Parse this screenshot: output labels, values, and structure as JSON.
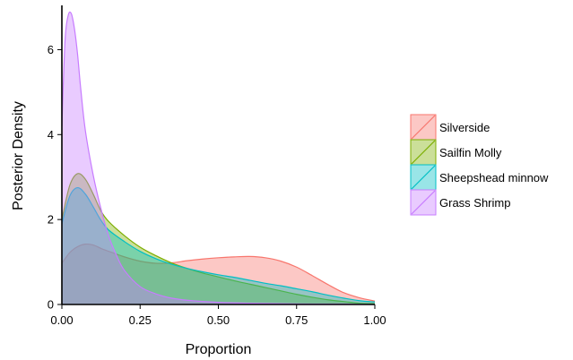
{
  "chart_data": {
    "type": "area",
    "title": "",
    "xlabel": "Proportion",
    "ylabel": "Posterior Density",
    "xlim": [
      0,
      1
    ],
    "ylim": [
      0,
      7
    ],
    "x_ticks": [
      "0.00",
      "0.25",
      "0.50",
      "0.75",
      "1.00"
    ],
    "x_tick_values": [
      0,
      0.25,
      0.5,
      0.75,
      1
    ],
    "y_ticks": [
      "0",
      "2",
      "4",
      "6"
    ],
    "y_tick_values": [
      0,
      2,
      4,
      6
    ],
    "grid": false,
    "legend_position": "right",
    "series": [
      {
        "name": "Silverside",
        "color": "#F8766D",
        "x": [
          0,
          0.025,
          0.05,
          0.075,
          0.1,
          0.125,
          0.15,
          0.2,
          0.25,
          0.3,
          0.35,
          0.4,
          0.45,
          0.5,
          0.55,
          0.6,
          0.65,
          0.7,
          0.75,
          0.8,
          0.85,
          0.9,
          0.95,
          1.0
        ],
        "y": [
          0.97,
          1.22,
          1.36,
          1.42,
          1.4,
          1.32,
          1.25,
          1.12,
          1.02,
          0.97,
          0.98,
          1.03,
          1.07,
          1.1,
          1.12,
          1.13,
          1.1,
          1.02,
          0.88,
          0.68,
          0.47,
          0.28,
          0.16,
          0.08
        ]
      },
      {
        "name": "Sailfin Molly",
        "color": "#7CAE00",
        "x": [
          0,
          0.025,
          0.05,
          0.075,
          0.1,
          0.125,
          0.15,
          0.2,
          0.25,
          0.3,
          0.35,
          0.4,
          0.45,
          0.5,
          0.55,
          0.6,
          0.65,
          0.7,
          0.75,
          0.8,
          0.85,
          0.9,
          0.95,
          1.0
        ],
        "y": [
          2.0,
          2.8,
          3.08,
          2.95,
          2.6,
          2.2,
          1.95,
          1.62,
          1.35,
          1.15,
          0.98,
          0.85,
          0.74,
          0.65,
          0.56,
          0.48,
          0.4,
          0.32,
          0.24,
          0.17,
          0.11,
          0.07,
          0.03,
          0.02
        ]
      },
      {
        "name": "Sheepshead minnow",
        "color": "#00BFC4",
        "x": [
          0,
          0.025,
          0.05,
          0.075,
          0.1,
          0.125,
          0.15,
          0.2,
          0.25,
          0.3,
          0.35,
          0.4,
          0.45,
          0.5,
          0.55,
          0.6,
          0.65,
          0.7,
          0.75,
          0.8,
          0.85,
          0.9,
          0.95,
          1.0
        ],
        "y": [
          1.9,
          2.55,
          2.75,
          2.6,
          2.3,
          1.98,
          1.75,
          1.48,
          1.25,
          1.08,
          0.95,
          0.85,
          0.77,
          0.7,
          0.64,
          0.57,
          0.5,
          0.44,
          0.37,
          0.3,
          0.22,
          0.15,
          0.09,
          0.06
        ]
      },
      {
        "name": "Grass Shrimp",
        "color": "#C77CFF",
        "x": [
          0,
          0.01,
          0.02,
          0.03,
          0.04,
          0.05,
          0.06,
          0.075,
          0.1,
          0.125,
          0.15,
          0.175,
          0.2,
          0.25,
          0.3,
          0.35,
          0.4,
          0.5,
          0.6,
          0.7,
          0.8,
          0.9,
          1.0
        ],
        "y": [
          4.2,
          6.2,
          6.8,
          6.85,
          6.5,
          5.9,
          5.1,
          4.1,
          3.05,
          2.25,
          1.6,
          1.15,
          0.8,
          0.42,
          0.25,
          0.15,
          0.1,
          0.05,
          0.03,
          0.02,
          0.01,
          0.01,
          0.0
        ]
      }
    ]
  }
}
